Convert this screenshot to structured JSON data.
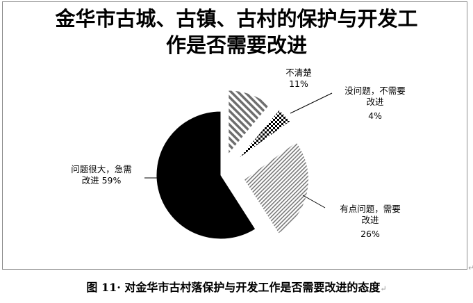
{
  "chart_data": {
    "type": "pie",
    "title_line1": "金华市古城、古镇、古村的保护与开发工",
    "title_line2": "作是否需要改进",
    "slices": [
      {
        "name": "不清楚",
        "value": 11,
        "pct_label": "11%",
        "pattern": "diag-hatch"
      },
      {
        "name_line1": "没问题，不需要",
        "name_line2": "改进",
        "value": 4,
        "pct_label": "4%",
        "pattern": "checker"
      },
      {
        "name_line1": "有点问题，需要",
        "name_line2": "改进",
        "value": 26,
        "pct_label": "26%",
        "pattern": "fine-stripes"
      },
      {
        "name_line1": "问题很大，急需",
        "name_line2": "改进 59%",
        "value": 59,
        "pattern": "solid-black"
      }
    ],
    "exploded": true,
    "legend": "none"
  },
  "caption": {
    "text": "图 11· 对金华市古村落保护与开发工作是否需要改进的态度",
    "return_mark": "↵"
  },
  "corner_mark": "↵"
}
